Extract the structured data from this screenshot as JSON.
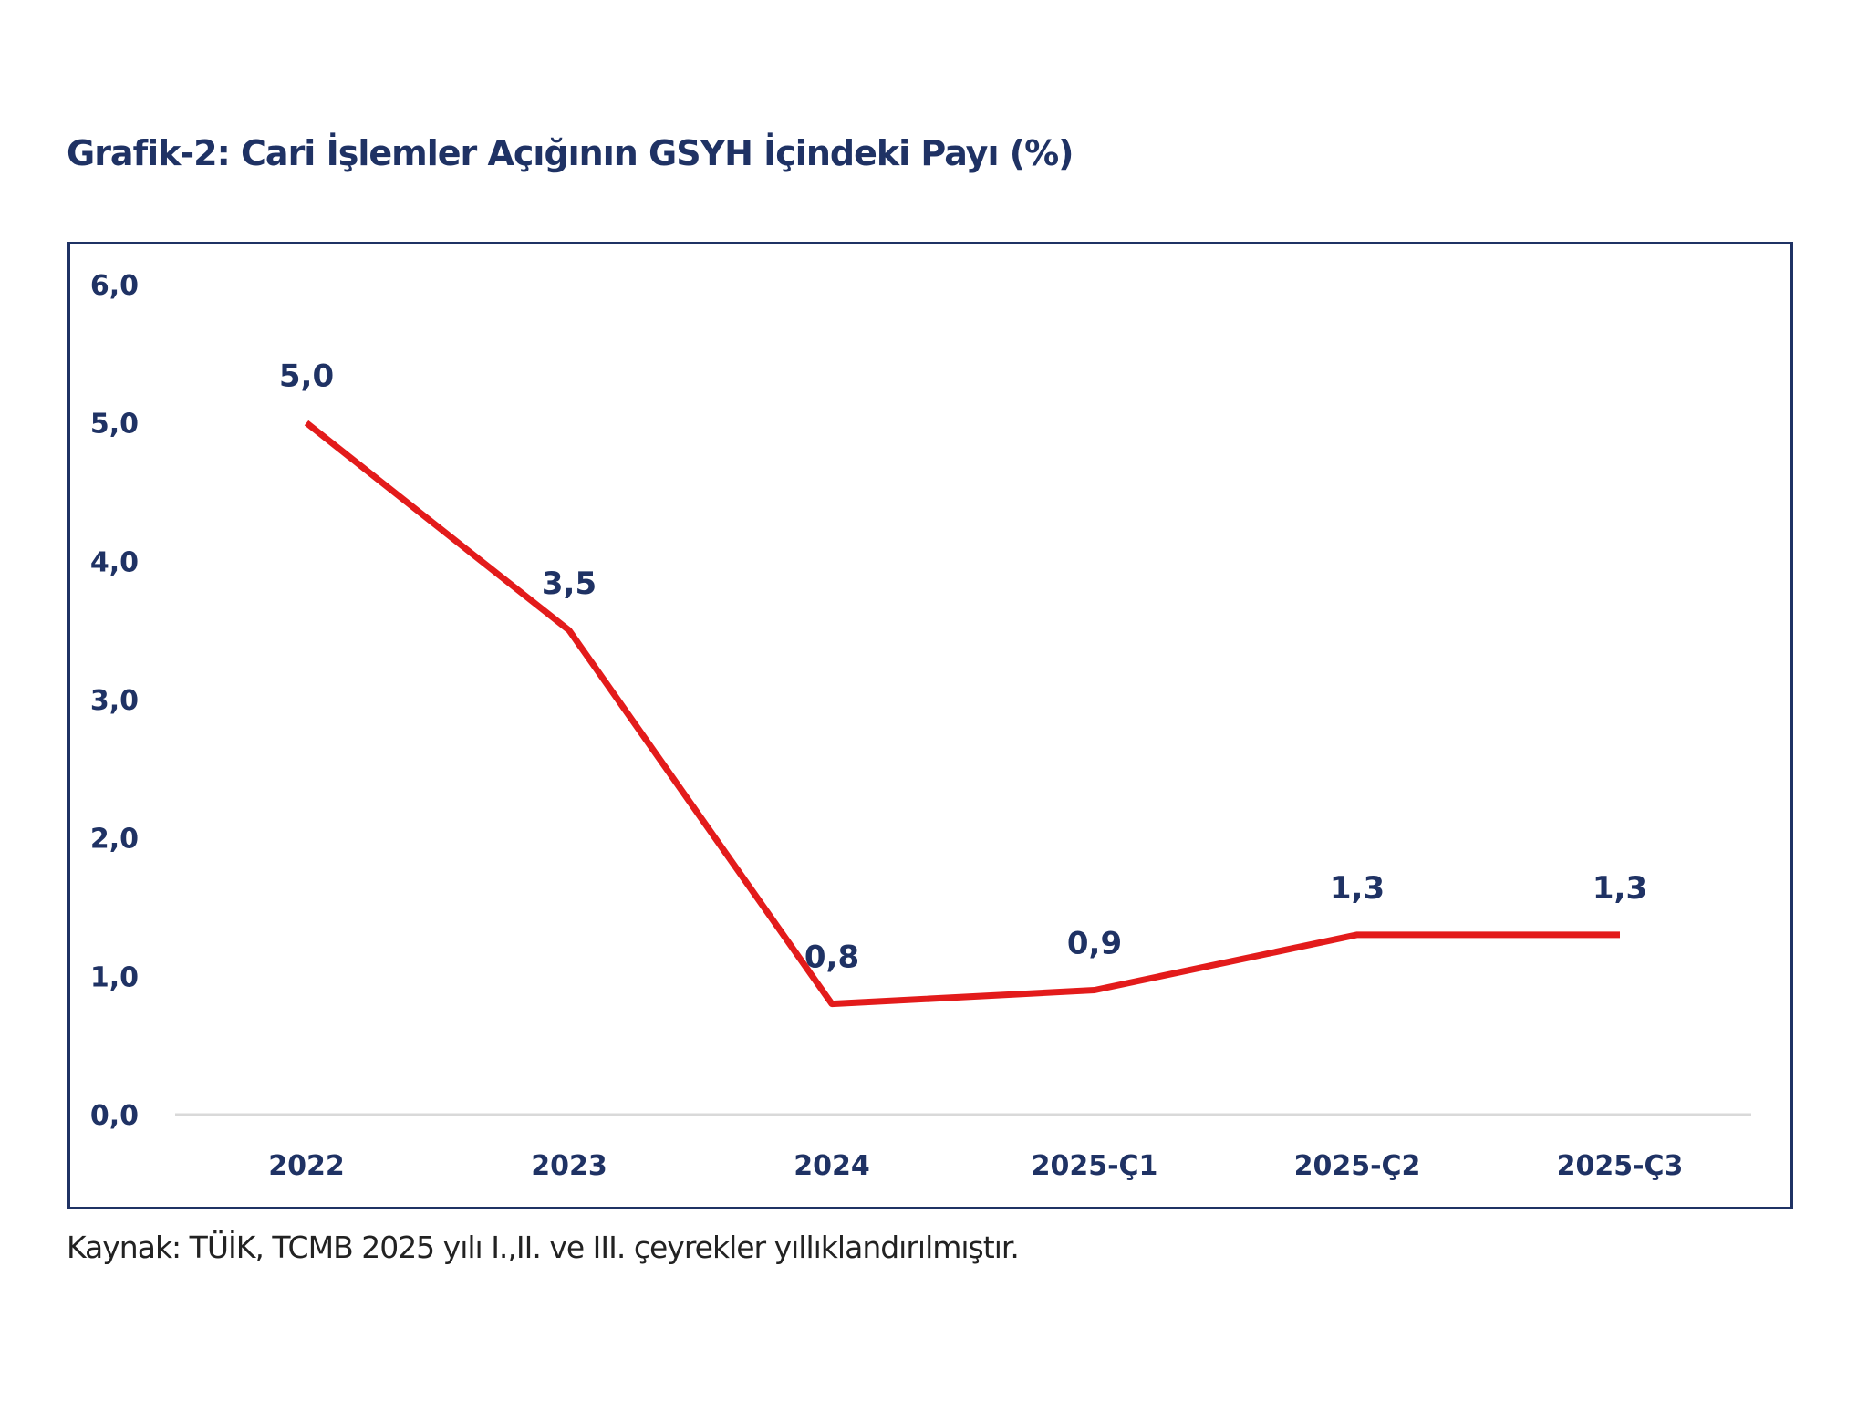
{
  "title": "Grafik-2: Cari İşlemler Açığının GSYH İçindeki Payı (%)",
  "source": "Kaynak: TÜİK, TCMB 2025 yılı I.,II. ve III. çeyrekler yıllıklandırılmıştır.",
  "chart_data": {
    "type": "line",
    "title": "Grafik-2: Cari İşlemler Açığının GSYH İçindeki Payı (%)",
    "xlabel": "",
    "ylabel": "",
    "categories": [
      "2022",
      "2023",
      "2024",
      "2025-Ç1",
      "2025-Ç2",
      "2025-Ç3"
    ],
    "series": [
      {
        "values": [
          5.0,
          3.5,
          0.8,
          0.9,
          1.3,
          1.3
        ],
        "labels": [
          "5,0",
          "3,5",
          "0,8",
          "0,9",
          "1,3",
          "1,3"
        ],
        "color": "#e31b1b"
      }
    ],
    "ylim": [
      0,
      6
    ],
    "yticks": [
      "0,0",
      "1,0",
      "2,0",
      "3,0",
      "4,0",
      "5,0",
      "6,0"
    ],
    "grid": false,
    "legend": "none",
    "axis_color": "#d9d9d9",
    "text_color": "#1f3264"
  }
}
